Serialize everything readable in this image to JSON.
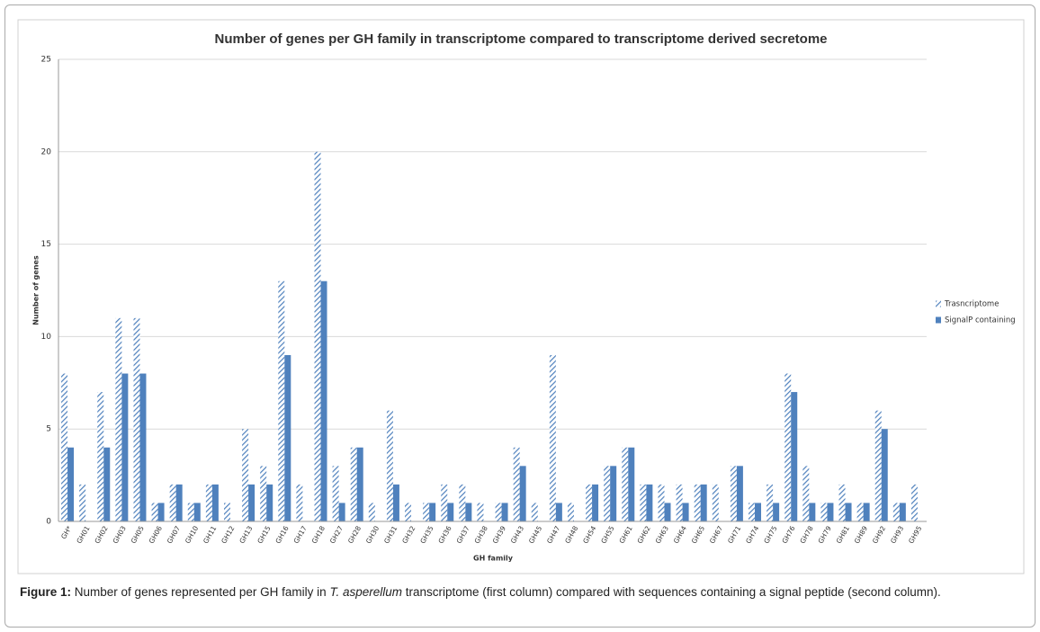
{
  "chart_data": {
    "type": "bar",
    "title": "Number of genes per GH family  in transcriptome compared  to transcriptome derived secretome",
    "x_label": "GH family",
    "y_label": "Number of genes",
    "categories": [
      "GH*",
      "GH01",
      "GH02",
      "GH03",
      "GH05",
      "GH06",
      "GH07",
      "GH10",
      "GH11",
      "GH12",
      "GH13",
      "GH15",
      "GH16",
      "GH17",
      "GH18",
      "GH27",
      "GH28",
      "GH30",
      "GH31",
      "GH32",
      "GH35",
      "GH36",
      "GH37",
      "GH38",
      "GH39",
      "GH43",
      "GH45",
      "GH47",
      "GH48",
      "GH54",
      "GH55",
      "GH61",
      "GH62",
      "GH63",
      "GH64",
      "GH65",
      "GH67",
      "GH71",
      "GH74",
      "GH75",
      "GH76",
      "GH78",
      "GH79",
      "GH81",
      "GH89",
      "GH92",
      "GH93",
      "GH95"
    ],
    "series": [
      {
        "name": "Trasncriptome",
        "color": "#4f81bd",
        "hatch": true,
        "values": [
          8,
          2,
          7,
          11,
          11,
          1,
          2,
          1,
          2,
          1,
          5,
          3,
          13,
          2,
          20,
          3,
          4,
          1,
          6,
          1,
          1,
          2,
          2,
          1,
          1,
          4,
          1,
          9,
          1,
          2,
          3,
          4,
          2,
          2,
          2,
          2,
          2,
          3,
          1,
          2,
          8,
          3,
          1,
          2,
          1,
          6,
          1,
          2
        ]
      },
      {
        "name": "SignalP containing",
        "color": "#4f81bd",
        "hatch": false,
        "values": [
          4,
          0,
          4,
          8,
          8,
          1,
          2,
          1,
          2,
          0,
          2,
          2,
          9,
          0,
          13,
          1,
          4,
          0,
          2,
          0,
          1,
          1,
          1,
          0,
          1,
          3,
          0,
          1,
          0,
          2,
          3,
          4,
          2,
          1,
          1,
          2,
          0,
          3,
          1,
          1,
          7,
          1,
          1,
          1,
          1,
          5,
          1,
          0
        ]
      }
    ],
    "ylim": [
      0,
      25
    ],
    "yticks": [
      0,
      5,
      10,
      15,
      20,
      25
    ],
    "grid": true,
    "legend": "right"
  },
  "caption": {
    "label": "Figure 1:",
    "text_before": "Number of genes represented per GH family in",
    "species": "T. asperellum",
    "text_after": "transcriptome (first column) compared with sequences containing a signal peptide (second column)."
  }
}
